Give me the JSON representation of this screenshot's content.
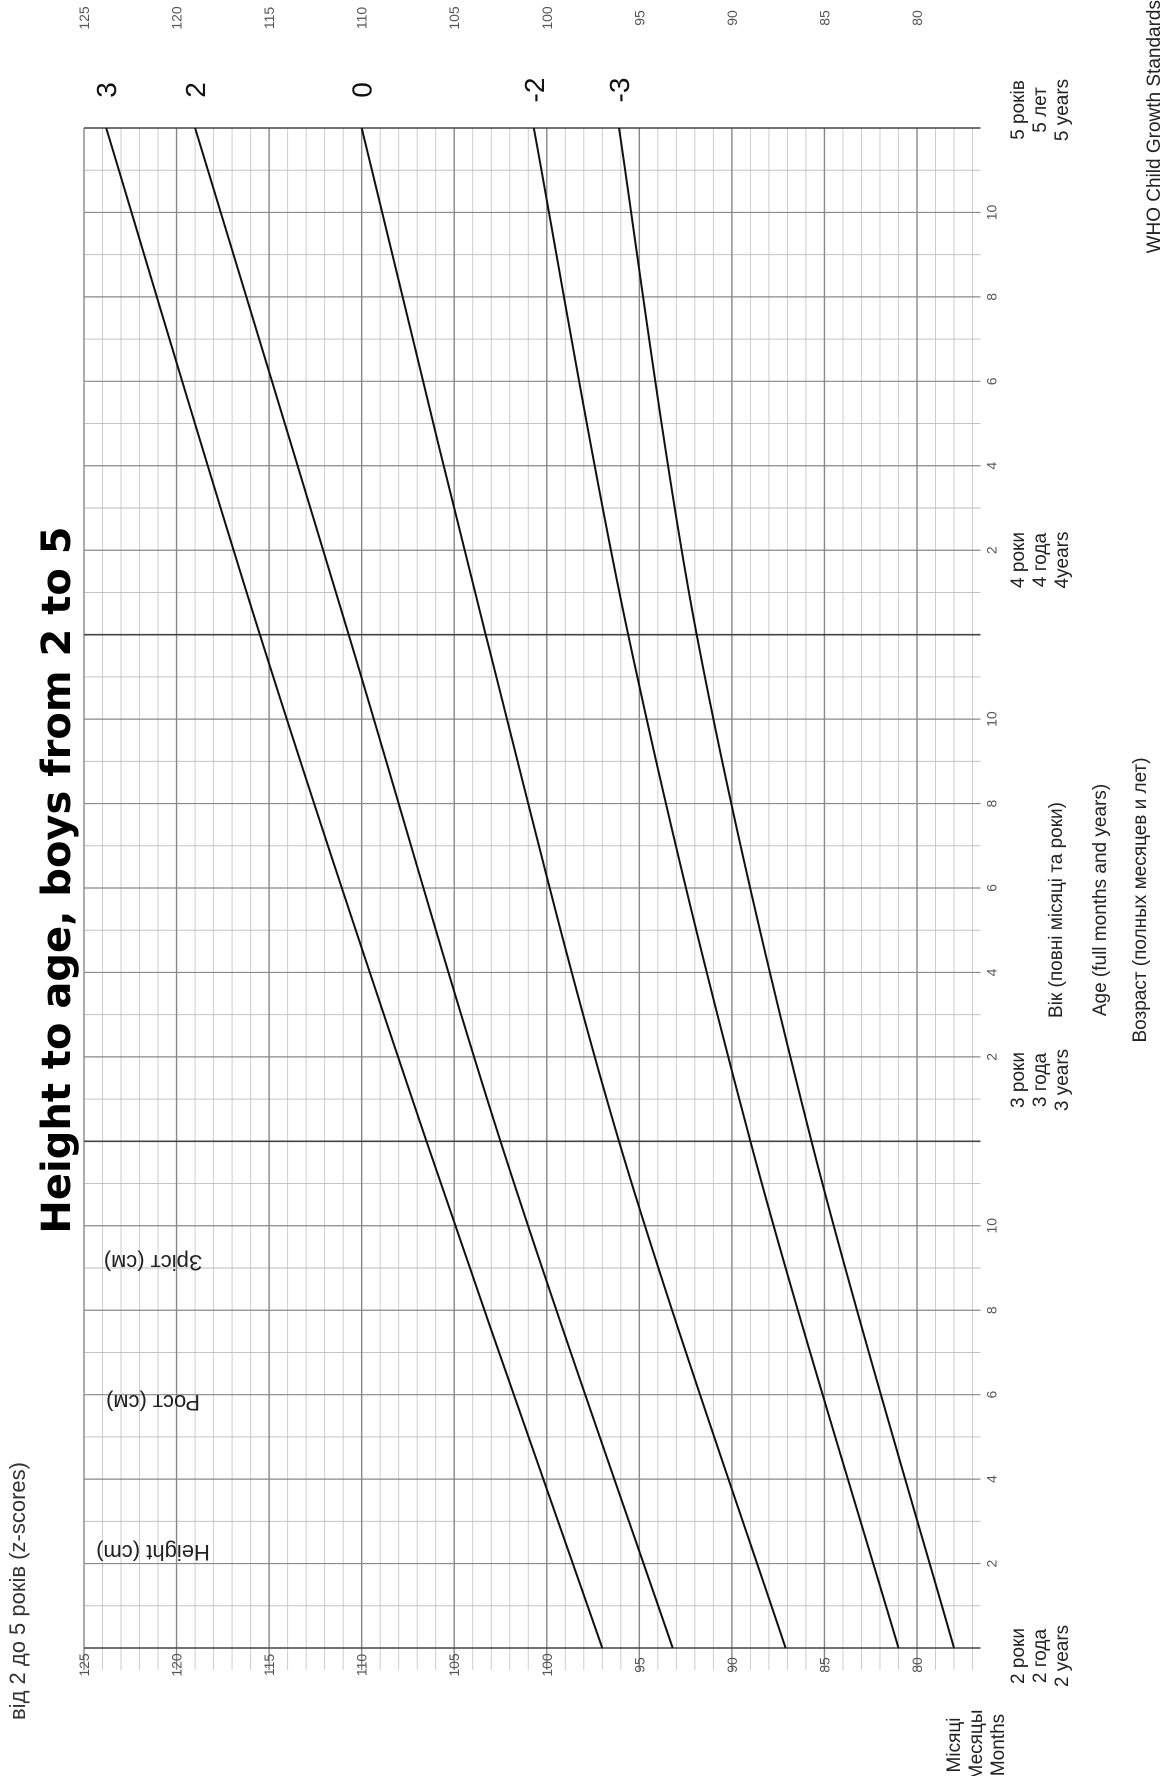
{
  "chart_data": {
    "type": "line",
    "title": "Height to age, boys from 2 to 5",
    "cut_text": "від 2 до 5 років (z-scores)",
    "y_labels": [
      "Зріст (см)",
      "Рост (см)",
      "Height (cm)"
    ],
    "x_labels": [
      "Вік (повні місяці та роки)",
      "Age (full months and years)",
      "Возраст (полных месяцев и лет)"
    ],
    "month_row_labels": [
      "Місяці",
      "Месяцы",
      "Months"
    ],
    "year_labels": [
      [
        "2 роки",
        "2 года",
        "2 years"
      ],
      [
        "3 роки",
        "3 года",
        "3 years"
      ],
      [
        "4 роки",
        "4 года",
        "4years"
      ],
      [
        "5 років",
        "5 лет",
        "5 years"
      ]
    ],
    "source": "WHO Child Growth Standards",
    "ylim": [
      77,
      125
    ],
    "y_ticks": [
      "80",
      "85",
      "90",
      "95",
      "100",
      "105",
      "110",
      "115",
      "120",
      "125"
    ],
    "xlim": [
      24,
      60
    ],
    "month_ticks": [
      "2",
      "4",
      "6",
      "8",
      "10"
    ],
    "grid": true,
    "x_months": [
      24,
      36,
      48,
      60
    ],
    "series": [
      {
        "name": "3",
        "values": [
          97.0,
          106.5,
          115.5,
          123.8
        ]
      },
      {
        "name": "2",
        "values": [
          93.2,
          102.5,
          110.7,
          119.0
        ]
      },
      {
        "name": "0",
        "values": [
          87.1,
          96.1,
          103.3,
          110.0
        ]
      },
      {
        "name": "-2",
        "values": [
          81.0,
          89.0,
          95.6,
          100.7
        ]
      },
      {
        "name": "-3",
        "values": [
          78.0,
          85.7,
          91.9,
          96.1
        ]
      }
    ]
  }
}
